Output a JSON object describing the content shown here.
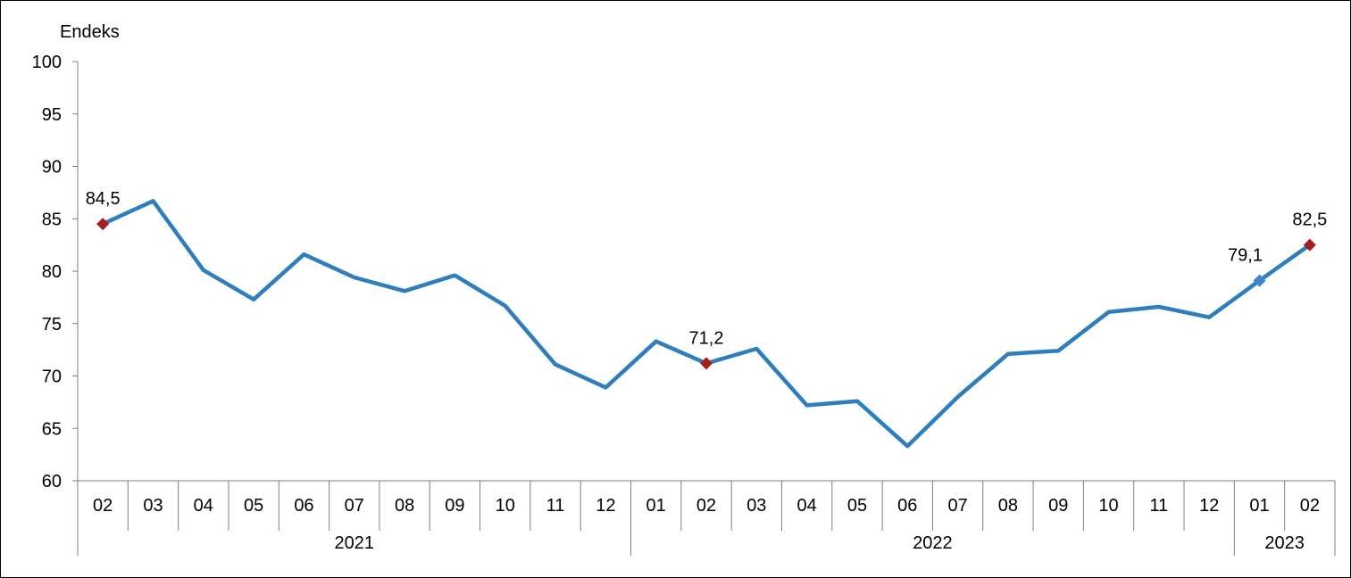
{
  "chart_data": {
    "type": "line",
    "ylabel": "Endeks",
    "ylim": [
      60,
      100
    ],
    "yticks": [
      "60",
      "65",
      "70",
      "75",
      "80",
      "85",
      "90",
      "95",
      "100"
    ],
    "grid": false,
    "categories": [
      "02",
      "03",
      "04",
      "05",
      "06",
      "07",
      "08",
      "09",
      "10",
      "11",
      "12",
      "01",
      "02",
      "03",
      "04",
      "05",
      "06",
      "07",
      "08",
      "09",
      "10",
      "11",
      "12",
      "01",
      "02"
    ],
    "year_groups": [
      {
        "label": "2021",
        "count": 11
      },
      {
        "label": "2022",
        "count": 12
      },
      {
        "label": "2023",
        "count": 2
      }
    ],
    "series": [
      {
        "values": [
          84.5,
          86.7,
          80.1,
          77.3,
          81.6,
          79.4,
          78.1,
          79.6,
          76.7,
          71.1,
          68.9,
          73.3,
          71.2,
          72.6,
          67.2,
          67.6,
          63.3,
          68.0,
          72.1,
          72.4,
          76.1,
          76.6,
          75.6,
          79.1,
          82.5
        ],
        "color": "#2e7ebc"
      }
    ],
    "annotations": [
      {
        "index": 0,
        "label": "84,5",
        "marker_color": "#a51d1d"
      },
      {
        "index": 12,
        "label": "71,2",
        "marker_color": "#a51d1d"
      },
      {
        "index": 23,
        "label": "79,1",
        "marker_color": "#3a86c8"
      },
      {
        "index": 24,
        "label": "82,5",
        "marker_color": "#a51d1d"
      }
    ]
  }
}
